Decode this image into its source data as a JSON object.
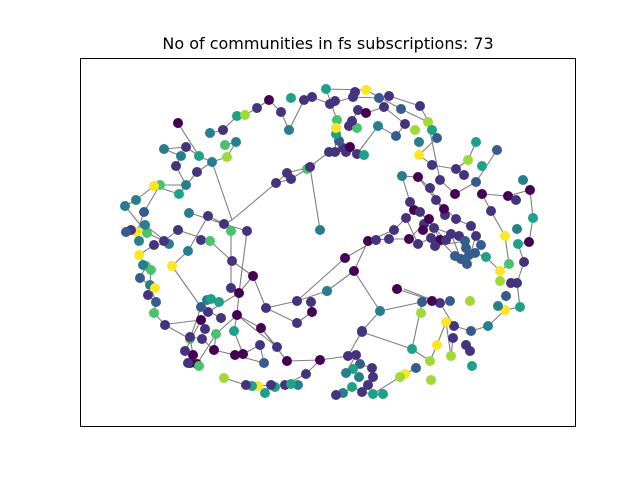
{
  "title": "No of communities in fs subscriptions: 73",
  "palette": {
    "dark_purple": "#440154",
    "indigo": "#46337e",
    "blue": "#365c8d",
    "teal_blue": "#277f8e",
    "teal": "#1fa187",
    "green": "#4ac16d",
    "lime": "#a0da39",
    "yellow": "#fde725",
    "edge": "#808080",
    "frame": "#000000",
    "background": "#ffffff"
  }
}
